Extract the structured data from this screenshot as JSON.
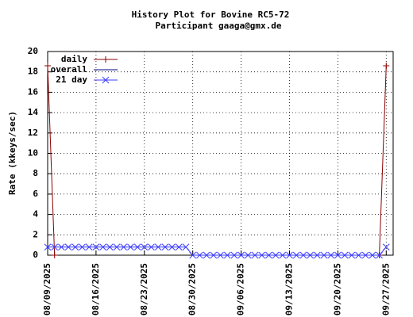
{
  "chart_data": {
    "type": "line",
    "title": "History Plot for Bovine RC5-72",
    "subtitle": "Participant gaaga@gmx.de",
    "y_label": "Rate (kkeys/sec)",
    "x": [
      "08/09/2025",
      "08/10/2025",
      "08/11/2025",
      "08/12/2025",
      "08/13/2025",
      "08/14/2025",
      "08/15/2025",
      "08/16/2025",
      "08/17/2025",
      "08/18/2025",
      "08/19/2025",
      "08/20/2025",
      "08/21/2025",
      "08/22/2025",
      "08/23/2025",
      "08/24/2025",
      "08/25/2025",
      "08/26/2025",
      "08/27/2025",
      "08/28/2025",
      "08/29/2025",
      "08/30/2025",
      "08/31/2025",
      "09/01/2025",
      "09/02/2025",
      "09/03/2025",
      "09/04/2025",
      "09/05/2025",
      "09/06/2025",
      "09/07/2025",
      "09/08/2025",
      "09/09/2025",
      "09/10/2025",
      "09/11/2025",
      "09/12/2025",
      "09/13/2025",
      "09/14/2025",
      "09/15/2025",
      "09/16/2025",
      "09/17/2025",
      "09/18/2025",
      "09/19/2025",
      "09/20/2025",
      "09/21/2025",
      "09/22/2025",
      "09/23/2025",
      "09/24/2025",
      "09/25/2025",
      "09/26/2025",
      "09/27/2025"
    ],
    "series": [
      {
        "name": "daily",
        "color": "#8b0000",
        "marker": "plus",
        "values": [
          18.6,
          0,
          null,
          null,
          null,
          null,
          null,
          null,
          null,
          null,
          null,
          null,
          null,
          null,
          null,
          null,
          null,
          null,
          null,
          null,
          null,
          null,
          null,
          null,
          null,
          null,
          null,
          null,
          null,
          null,
          null,
          null,
          null,
          null,
          null,
          null,
          null,
          null,
          null,
          null,
          null,
          null,
          null,
          null,
          null,
          null,
          null,
          null,
          0,
          18.6
        ]
      },
      {
        "name": "overall",
        "color": "#000080",
        "values": [
          null,
          null,
          null,
          null,
          null,
          null,
          null,
          null,
          null,
          null,
          null,
          null,
          null,
          null,
          null,
          null,
          null,
          null,
          null,
          null,
          null,
          null,
          null,
          null,
          null,
          null,
          null,
          null,
          null,
          null,
          null,
          null,
          null,
          null,
          null,
          null,
          null,
          null,
          null,
          null,
          null,
          null,
          null,
          null,
          null,
          null,
          null,
          null,
          null,
          null
        ]
      },
      {
        "name": "21 day",
        "color": "#3c3cff",
        "marker": "cross",
        "values": [
          0.8,
          0.8,
          0.8,
          0.8,
          0.8,
          0.8,
          0.8,
          0.8,
          0.8,
          0.8,
          0.8,
          0.8,
          0.8,
          0.8,
          0.8,
          0.8,
          0.8,
          0.8,
          0.8,
          0.8,
          0.8,
          0,
          0,
          0,
          0,
          0,
          0,
          0,
          0,
          0,
          0,
          0,
          0,
          0,
          0,
          0,
          0,
          0,
          0,
          0,
          0,
          0,
          0,
          0,
          0,
          0,
          0,
          0,
          0,
          0.8
        ]
      }
    ],
    "xlim": [
      "08/09/2025",
      "09/28/2025"
    ],
    "xticks": [
      "08/09/2025",
      "08/16/2025",
      "08/23/2025",
      "08/30/2025",
      "09/06/2025",
      "09/13/2025",
      "09/20/2025",
      "09/27/2025"
    ],
    "ylim": [
      0,
      20
    ],
    "yticks": [
      0,
      2,
      4,
      6,
      8,
      10,
      12,
      14,
      16,
      18,
      20
    ],
    "grid": true,
    "legend": "top-left"
  }
}
